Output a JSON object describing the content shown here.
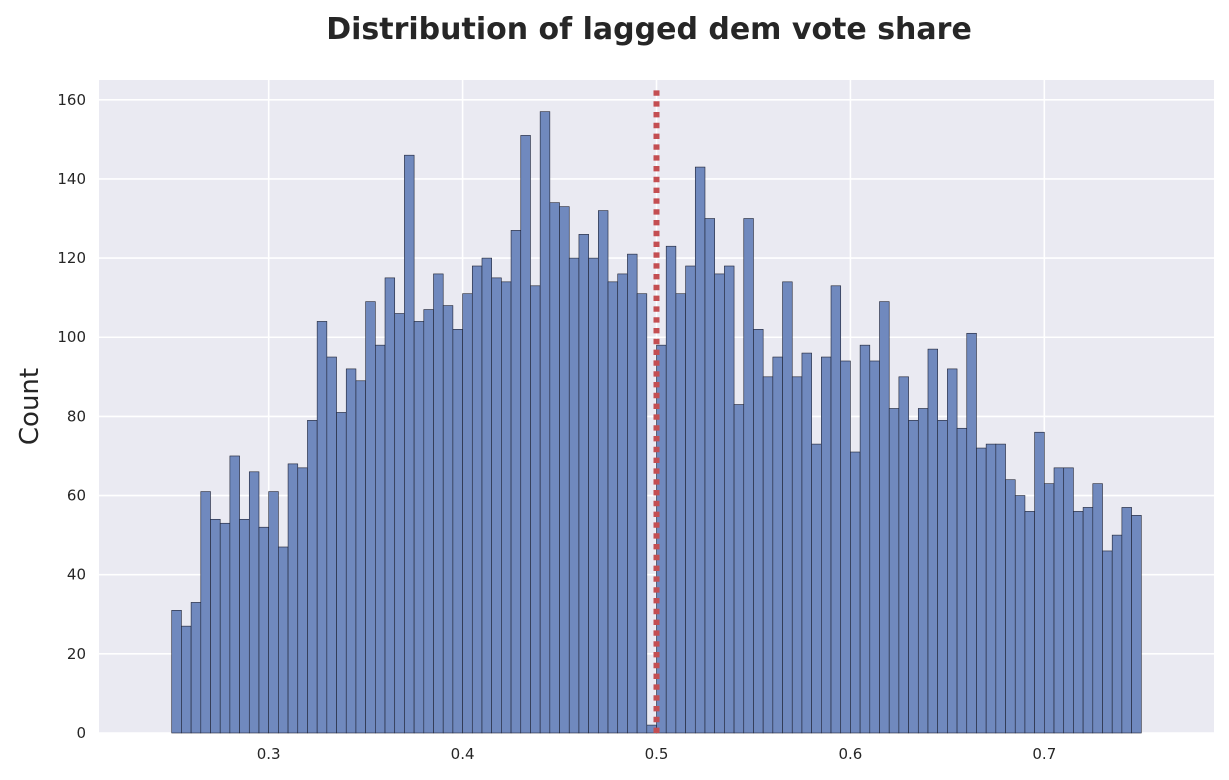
{
  "chart_data": {
    "type": "bar",
    "title": "Distribution of lagged dem vote share",
    "xlabel": "",
    "ylabel": "Count",
    "xlim": [
      0.2125,
      0.7875
    ],
    "ylim": [
      0,
      165
    ],
    "x_ticks": [
      0.3,
      0.4,
      0.5,
      0.6,
      0.7
    ],
    "x_tick_labels": [
      "0.3",
      "0.4",
      "0.5",
      "0.6",
      "0.7"
    ],
    "y_ticks": [
      0,
      20,
      40,
      60,
      80,
      100,
      120,
      140,
      160
    ],
    "y_tick_labels": [
      "0",
      "20",
      "40",
      "60",
      "80",
      "100",
      "120",
      "140",
      "160"
    ],
    "grid": true,
    "bins": {
      "start": 0.25,
      "end": 0.75,
      "count": 100,
      "width": 0.005
    },
    "values": [
      31,
      27,
      33,
      61,
      54,
      53,
      70,
      54,
      66,
      52,
      61,
      47,
      68,
      67,
      79,
      104,
      95,
      81,
      92,
      89,
      109,
      98,
      115,
      106,
      146,
      104,
      107,
      116,
      108,
      102,
      111,
      118,
      120,
      115,
      114,
      127,
      151,
      113,
      157,
      134,
      133,
      120,
      126,
      120,
      132,
      114,
      116,
      121,
      111,
      2,
      98,
      123,
      111,
      118,
      143,
      130,
      116,
      118,
      83,
      130,
      102,
      90,
      95,
      114,
      90,
      96,
      73,
      95,
      113,
      94,
      71,
      98,
      94,
      109,
      82,
      90,
      79,
      82,
      97,
      79,
      92,
      77,
      101,
      72,
      73,
      73,
      64,
      60,
      56,
      76,
      63,
      67,
      67,
      56,
      57,
      63,
      46,
      50,
      57,
      55
    ],
    "reference_line": {
      "x": 0.5,
      "style": "dotted"
    },
    "colors": {
      "bar_fill": "#7089be",
      "bar_edge": "#1e2233",
      "reference_line": "#c44e52",
      "axes_background": "#eaeaf2",
      "grid": "#ffffff",
      "text": "#262626"
    }
  }
}
